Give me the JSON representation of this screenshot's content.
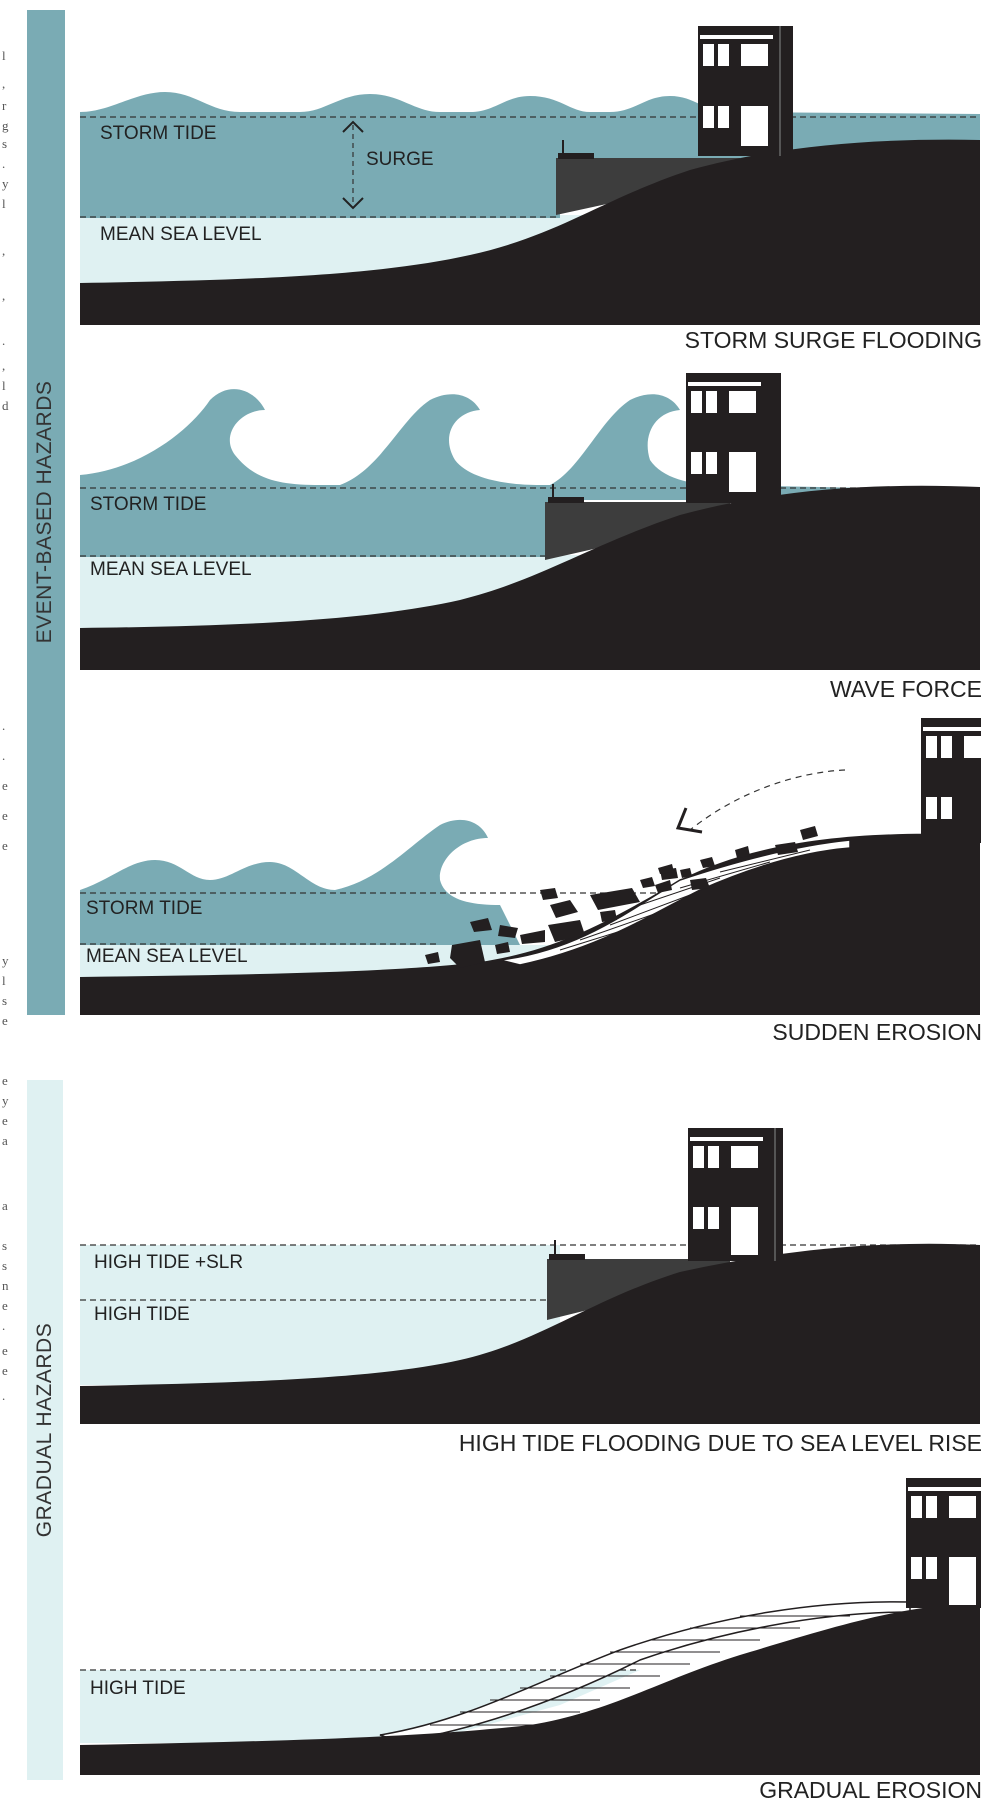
{
  "colors": {
    "storm_water": "#7aabb4",
    "calm_water": "#dff1f2",
    "ground": "#231f20",
    "seawall": "#3d3d3d",
    "event_bar": "#7aabb4",
    "gradual_bar": "#dff1f2"
  },
  "groups": {
    "event_label": "EVENT-BASED HAZARDS",
    "gradual_label": "GRADUAL HAZARDS"
  },
  "panels": {
    "storm_surge": {
      "title": "STORM SURGE FLOODING",
      "upper_line": "STORM TIDE",
      "lower_line": "MEAN SEA LEVEL",
      "range_label": "SURGE"
    },
    "wave_force": {
      "title": "WAVE FORCE",
      "upper_line": "STORM TIDE",
      "lower_line": "MEAN SEA LEVEL"
    },
    "sudden_erosion": {
      "title": "SUDDEN EROSION",
      "upper_line": "STORM TIDE",
      "lower_line": "MEAN SEA LEVEL"
    },
    "high_tide": {
      "title": "HIGH TIDE FLOODING DUE TO SEA LEVEL RISE",
      "upper_line": "HIGH TIDE +SLR",
      "lower_line": "HIGH TIDE"
    },
    "gradual_erosion": {
      "title": "GRADUAL EROSION",
      "upper_line": "HIGH TIDE"
    }
  }
}
